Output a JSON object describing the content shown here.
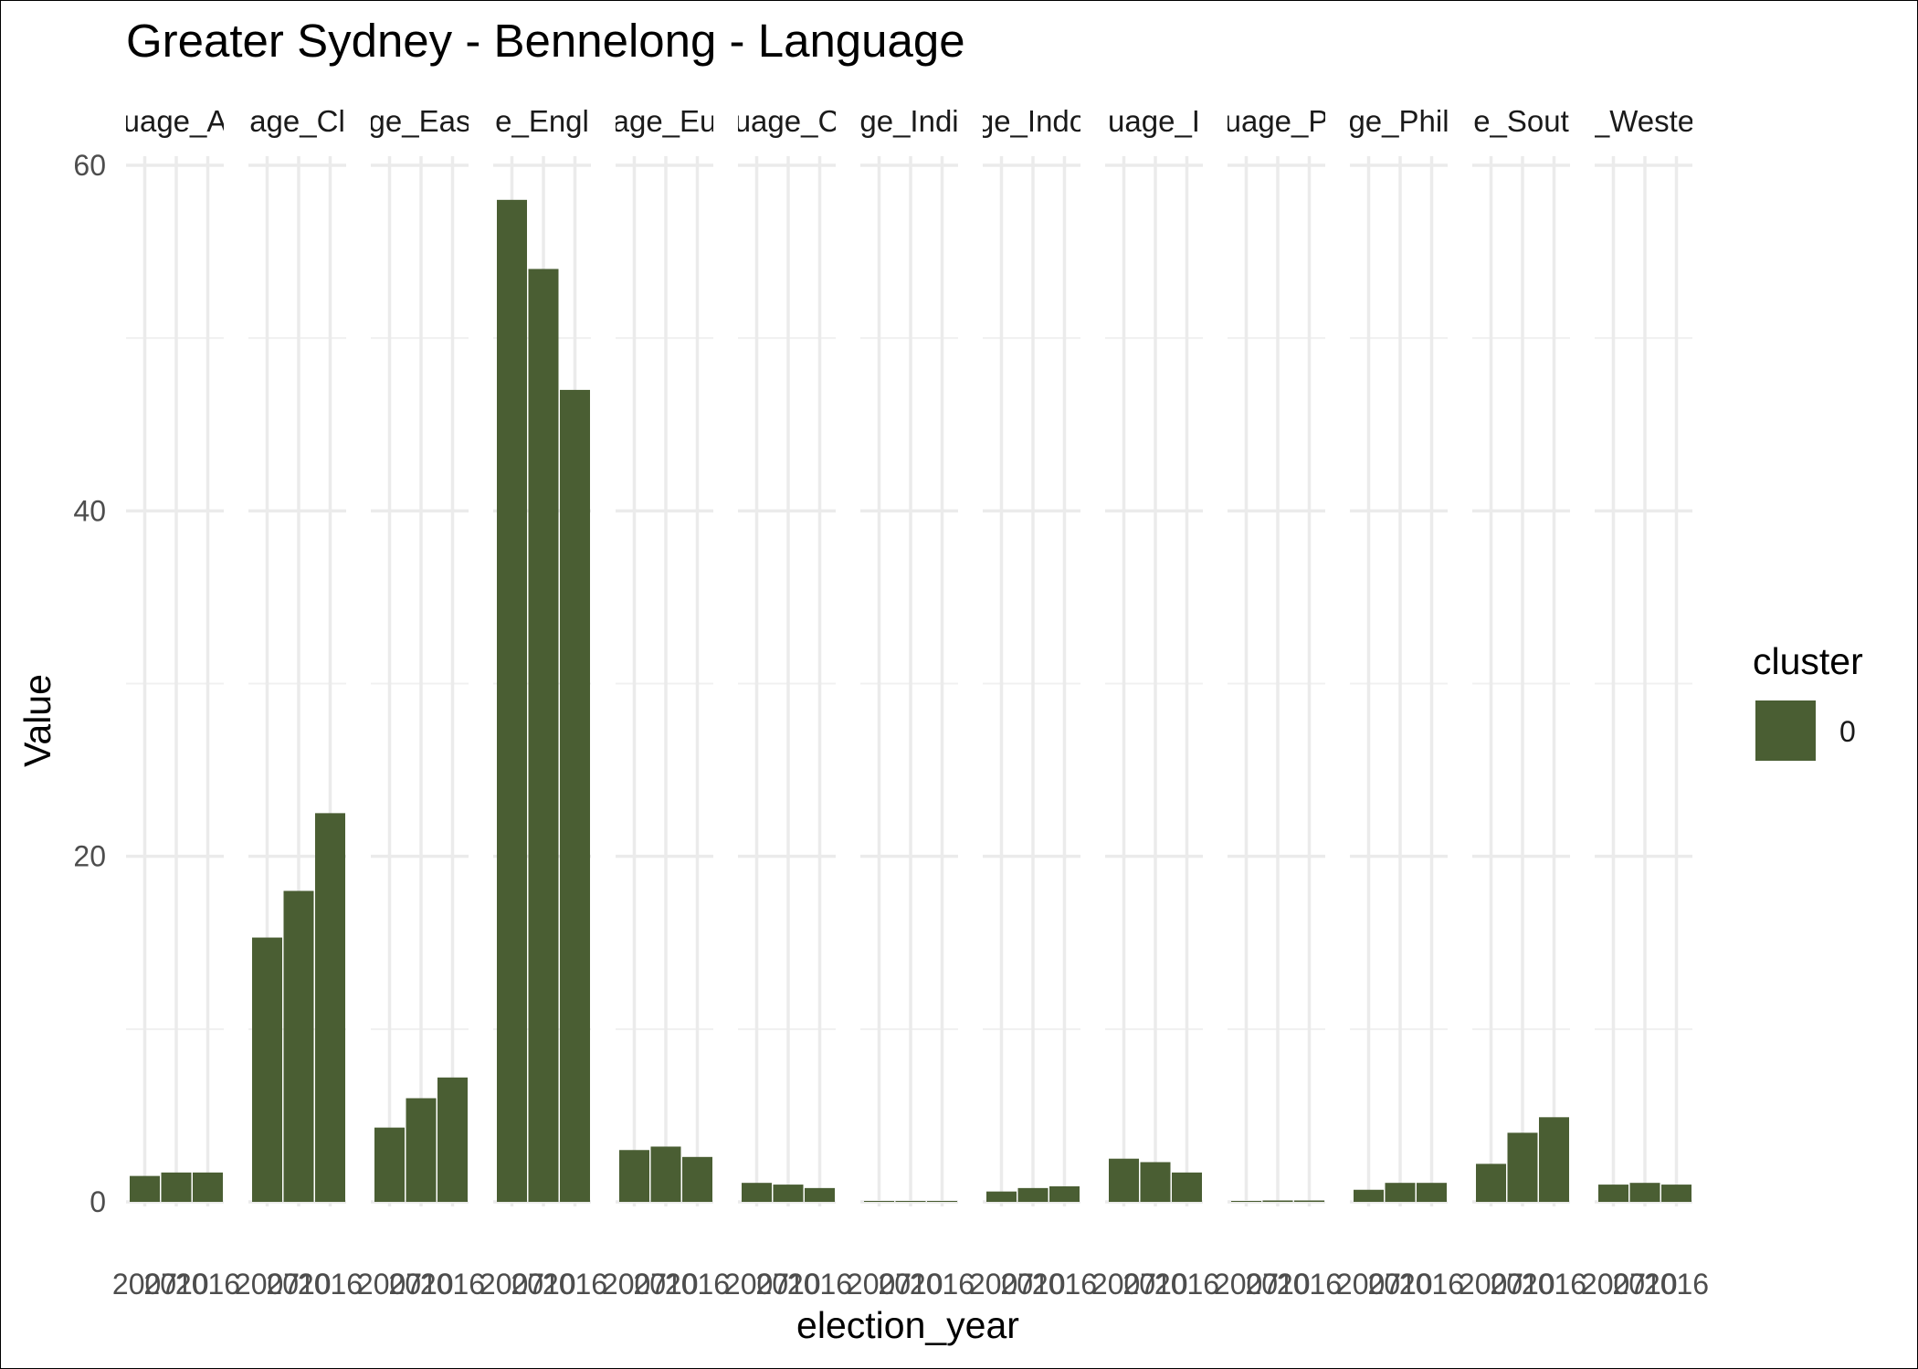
{
  "chart_data": {
    "type": "bar",
    "title": "Greater Sydney - Bennelong - Language",
    "xlabel": "election_year",
    "ylabel": "Value",
    "ylim": [
      0,
      60
    ],
    "y_ticks": [
      0,
      20,
      40,
      60
    ],
    "grid": true,
    "bar_color": "#4a5e33",
    "x": [
      "2007",
      "2010",
      "2016"
    ],
    "x_tick_labels": [
      "2007",
      "2010",
      "2016"
    ],
    "facets": [
      {
        "strip": "uage_A",
        "values": [
          1.5,
          1.7,
          1.7
        ]
      },
      {
        "strip": "age_Cl",
        "values": [
          15.3,
          18.0,
          22.5
        ]
      },
      {
        "strip": "ge_Eas",
        "values": [
          4.3,
          6.0,
          7.2
        ]
      },
      {
        "strip": "e_Engl",
        "values": [
          58.0,
          54.0,
          47.0
        ]
      },
      {
        "strip": "age_Eu",
        "values": [
          3.0,
          3.2,
          2.6
        ]
      },
      {
        "strip": "uage_C",
        "values": [
          1.1,
          1.0,
          0.8
        ]
      },
      {
        "strip": "ge_Indi",
        "values": [
          0.05,
          0.05,
          0.05
        ]
      },
      {
        "strip": "ge_Indo",
        "values": [
          0.6,
          0.8,
          0.9
        ]
      },
      {
        "strip": "uage_I",
        "values": [
          2.5,
          2.3,
          1.7
        ]
      },
      {
        "strip": "uage_P",
        "values": [
          0.05,
          0.08,
          0.08
        ]
      },
      {
        "strip": "ge_Phil",
        "values": [
          0.7,
          1.1,
          1.1
        ]
      },
      {
        "strip": "e_Sout",
        "values": [
          2.2,
          4.0,
          4.9
        ]
      },
      {
        "strip": "_Weste",
        "values": [
          1.0,
          1.1,
          1.0
        ]
      }
    ],
    "legend": {
      "title": "cluster",
      "entries": [
        {
          "label": "0",
          "color": "#4a5e33"
        }
      ],
      "position": "right"
    }
  }
}
